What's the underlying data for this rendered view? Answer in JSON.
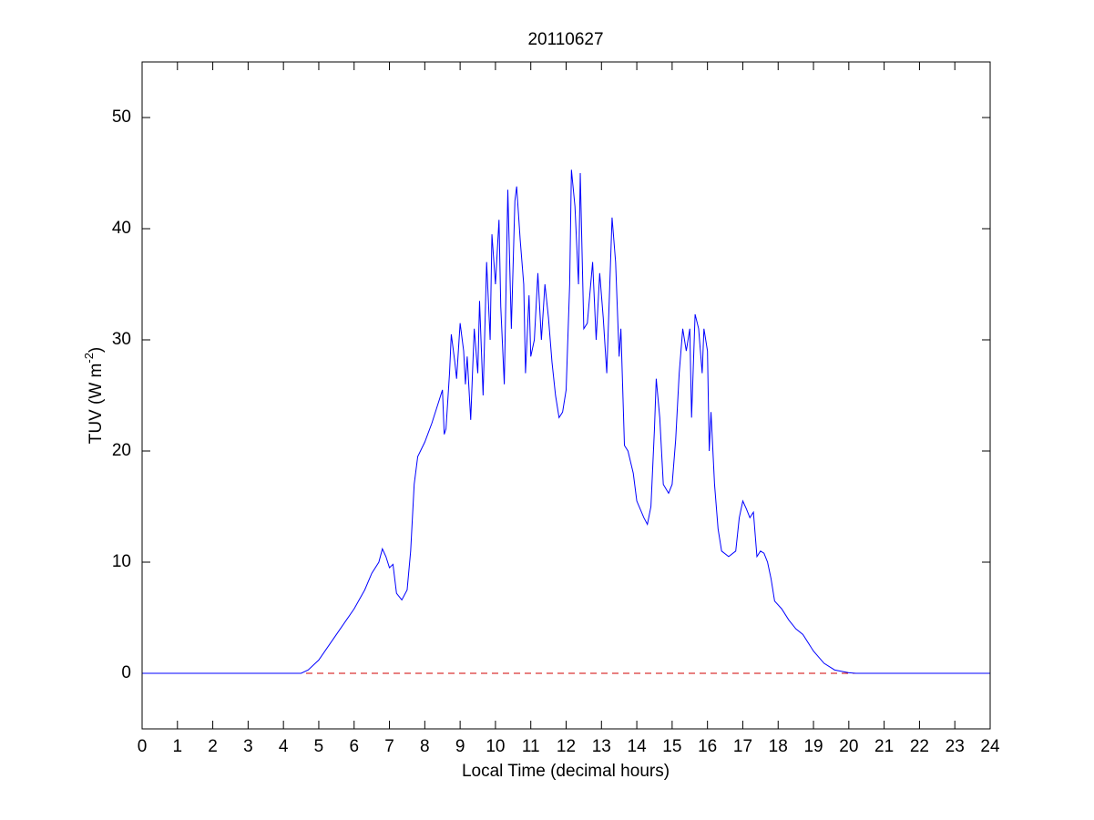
{
  "chart_data": {
    "type": "line",
    "title": "20110627",
    "xlabel": "Local Time (decimal hours)",
    "ylabel": [
      "TUV (W m",
      "-2",
      ")"
    ],
    "xlim": [
      0,
      24
    ],
    "xticks": [
      0,
      1,
      2,
      3,
      4,
      5,
      6,
      7,
      8,
      9,
      10,
      11,
      12,
      13,
      14,
      15,
      16,
      17,
      18,
      19,
      20,
      21,
      22,
      23,
      24
    ],
    "ylim": [
      -5,
      55
    ],
    "yticks": [
      0,
      10,
      20,
      30,
      40,
      50
    ],
    "grid": false,
    "reference_line": {
      "value": 0,
      "color": "#d00000",
      "style": "dashed"
    },
    "series": [
      {
        "color": "#0000ff",
        "x": [
          0,
          4.5,
          4.7,
          5.0,
          5.5,
          6.0,
          6.3,
          6.5,
          6.7,
          6.8,
          6.9,
          7.0,
          7.1,
          7.2,
          7.35,
          7.5,
          7.6,
          7.7,
          7.8,
          8.0,
          8.2,
          8.4,
          8.5,
          8.55,
          8.6,
          8.7,
          8.75,
          8.85,
          8.9,
          9.0,
          9.1,
          9.15,
          9.2,
          9.3,
          9.35,
          9.4,
          9.5,
          9.55,
          9.65,
          9.75,
          9.85,
          9.9,
          10.0,
          10.1,
          10.15,
          10.25,
          10.35,
          10.45,
          10.55,
          10.6,
          10.7,
          10.8,
          10.85,
          10.95,
          11.0,
          11.1,
          11.2,
          11.3,
          11.4,
          11.5,
          11.6,
          11.7,
          11.8,
          11.9,
          12.0,
          12.1,
          12.15,
          12.25,
          12.35,
          12.4,
          12.5,
          12.6,
          12.75,
          12.85,
          12.95,
          13.05,
          13.15,
          13.3,
          13.4,
          13.5,
          13.55,
          13.65,
          13.75,
          13.9,
          14.0,
          14.2,
          14.3,
          14.4,
          14.5,
          14.55,
          14.65,
          14.75,
          14.9,
          15.0,
          15.1,
          15.2,
          15.3,
          15.4,
          15.5,
          15.55,
          15.65,
          15.75,
          15.85,
          15.9,
          16.0,
          16.05,
          16.1,
          16.2,
          16.3,
          16.4,
          16.6,
          16.8,
          16.9,
          17.0,
          17.1,
          17.2,
          17.3,
          17.4,
          17.5,
          17.6,
          17.7,
          17.8,
          17.9,
          18.1,
          18.3,
          18.5,
          18.7,
          19.0,
          19.3,
          19.6,
          20.0,
          20.2,
          24
        ],
        "values": [
          0,
          0,
          0.3,
          1.2,
          3.5,
          5.8,
          7.5,
          9.0,
          10.0,
          11.2,
          10.5,
          9.5,
          9.8,
          7.2,
          6.6,
          7.5,
          11,
          17,
          19.5,
          20.8,
          22.5,
          24.5,
          25.5,
          21.5,
          22,
          27,
          30.5,
          28,
          26.5,
          31.5,
          29,
          26,
          28.5,
          22.8,
          27,
          31,
          27,
          33.5,
          25,
          37,
          30,
          39.5,
          35,
          40.8,
          33,
          26,
          43.5,
          31,
          42.5,
          43.8,
          39,
          35,
          27,
          34,
          28.5,
          30,
          36,
          30,
          35,
          32,
          28,
          25,
          23,
          23.5,
          25.5,
          35,
          45.3,
          42,
          35,
          45,
          31,
          31.5,
          37,
          30,
          36,
          32,
          27,
          41,
          37,
          28.5,
          31,
          20.5,
          20,
          18,
          15.5,
          14,
          13.4,
          15,
          22,
          26.5,
          23,
          17,
          16.2,
          17,
          21,
          27,
          31,
          29,
          31,
          23,
          32.3,
          31,
          27,
          31,
          29,
          20,
          23.5,
          17,
          13,
          11,
          10.5,
          11,
          14,
          15.5,
          14.8,
          14,
          14.5,
          10.5,
          11,
          10.8,
          10,
          8.5,
          6.5,
          5.8,
          4.8,
          4,
          3.5,
          2,
          0.9,
          0.3,
          0.05,
          0,
          0
        ]
      }
    ]
  }
}
